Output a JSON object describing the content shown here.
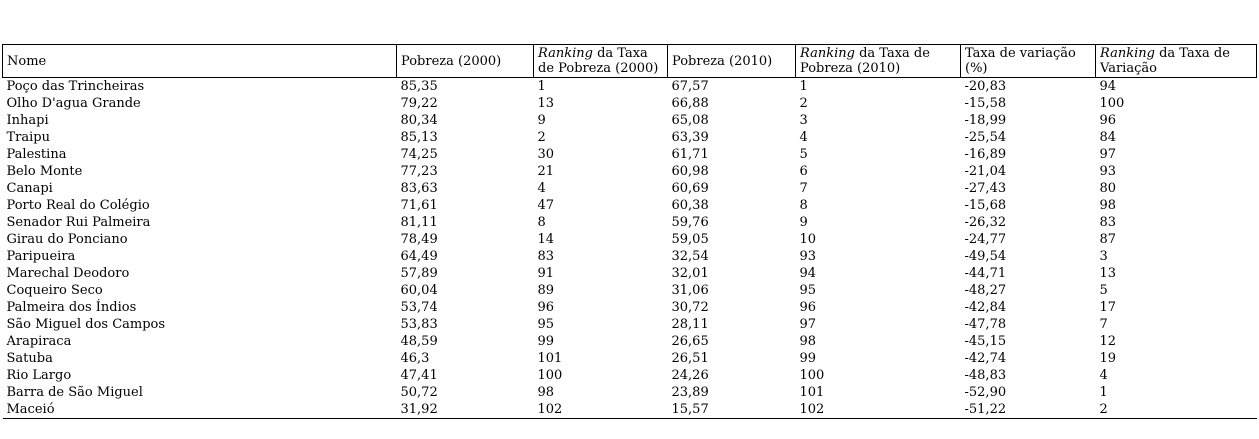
{
  "colors": {
    "background": "#ffffff",
    "text": "#000000",
    "border": "#000000"
  },
  "chart_data": {
    "type": "table",
    "title": "",
    "columns": [
      {
        "text": "Nome"
      },
      {
        "text": "Pobreza (2000)"
      },
      {
        "italic": "Ranking",
        "text": " da Taxa de Pobreza (2000)"
      },
      {
        "text": "Pobreza (2010)"
      },
      {
        "italic": "Ranking",
        "text": " da Taxa de Pobreza (2010)"
      },
      {
        "text": "Taxa de variação (%)"
      },
      {
        "italic": "Ranking",
        "text": " da Taxa de Variação"
      }
    ],
    "rows": [
      [
        "Poço das Trincheiras",
        "85,35",
        "1",
        "67,57",
        "1",
        "-20,83",
        "94"
      ],
      [
        "Olho D'agua Grande",
        "79,22",
        "13",
        "66,88",
        "2",
        "-15,58",
        "100"
      ],
      [
        "Inhapi",
        "80,34",
        "9",
        "65,08",
        "3",
        "-18,99",
        "96"
      ],
      [
        "Traipu",
        "85,13",
        "2",
        "63,39",
        "4",
        "-25,54",
        "84"
      ],
      [
        "Palestina",
        "74,25",
        "30",
        "61,71",
        "5",
        "-16,89",
        "97"
      ],
      [
        "Belo Monte",
        "77,23",
        "21",
        "60,98",
        "6",
        "-21,04",
        "93"
      ],
      [
        "Canapi",
        "83,63",
        "4",
        "60,69",
        "7",
        "-27,43",
        "80"
      ],
      [
        "Porto Real do Colégio",
        "71,61",
        "47",
        "60,38",
        "8",
        "-15,68",
        "98"
      ],
      [
        "Senador Rui Palmeira",
        "81,11",
        "8",
        "59,76",
        "9",
        "-26,32",
        "83"
      ],
      [
        "Girau do Ponciano",
        "78,49",
        "14",
        "59,05",
        "10",
        "-24,77",
        "87"
      ],
      [
        "Paripueira",
        "64,49",
        "83",
        "32,54",
        "93",
        "-49,54",
        "3"
      ],
      [
        "Marechal Deodoro",
        "57,89",
        "91",
        "32,01",
        "94",
        "-44,71",
        "13"
      ],
      [
        "Coqueiro Seco",
        "60,04",
        "89",
        "31,06",
        "95",
        "-48,27",
        "5"
      ],
      [
        "Palmeira dos Índios",
        "53,74",
        "96",
        "30,72",
        "96",
        "-42,84",
        "17"
      ],
      [
        "São Miguel dos Campos",
        "53,83",
        "95",
        "28,11",
        "97",
        "-47,78",
        "7"
      ],
      [
        "Arapiraca",
        "48,59",
        "99",
        "26,65",
        "98",
        "-45,15",
        "12"
      ],
      [
        "Satuba",
        "46,3",
        "101",
        "26,51",
        "99",
        "-42,74",
        "19"
      ],
      [
        "Rio Largo",
        "47,41",
        "100",
        "24,26",
        "100",
        "-48,83",
        "4"
      ],
      [
        "Barra de São Miguel",
        "50,72",
        "98",
        "23,89",
        "101",
        "-52,90",
        "1"
      ],
      [
        "Maceió",
        "31,92",
        "102",
        "15,57",
        "102",
        "-51,22",
        "2"
      ]
    ]
  }
}
